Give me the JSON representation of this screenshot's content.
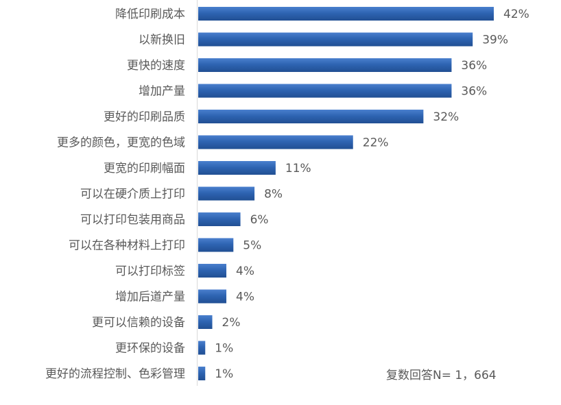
{
  "chart_data": {
    "type": "bar",
    "orientation": "horizontal",
    "categories": [
      "降低印刷成本",
      "以新换旧",
      "更快的速度",
      "增加产量",
      "更好的印刷品质",
      "更多的颜色，更宽的色域",
      "更宽的印刷幅面",
      "可以在硬介质上打印",
      "可以打印包装用商品",
      "可以在各种材料上打印",
      "可以打印标签",
      "增加后道产量",
      "更可以信赖的设备",
      "更环保的设备",
      "更好的流程控制、色彩管理"
    ],
    "values": [
      42,
      39,
      36,
      36,
      32,
      22,
      11,
      8,
      6,
      5,
      4,
      4,
      2,
      1,
      1
    ],
    "value_labels": [
      "42%",
      "39%",
      "36%",
      "36%",
      "32%",
      "22%",
      "11%",
      "8%",
      "6%",
      "5%",
      "4%",
      "4%",
      "2%",
      "1%",
      "1%"
    ],
    "xlim": [
      0,
      42
    ],
    "grid": false,
    "bar_color": "#2e64b2",
    "note": "复数回答N= 1，664"
  }
}
